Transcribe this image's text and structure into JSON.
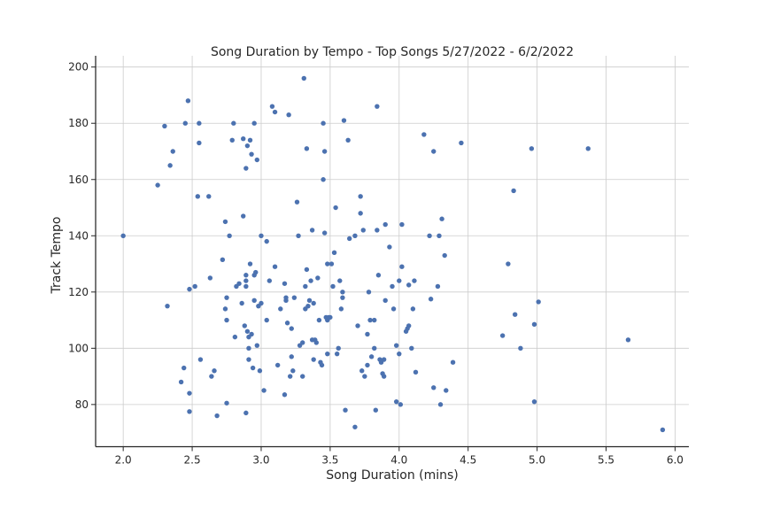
{
  "chart_data": {
    "type": "scatter",
    "title": "Song Duration by Tempo - Top Songs 5/27/2022 - 6/2/2022",
    "xlabel": "Song Duration (mins)",
    "ylabel": "Track Tempo",
    "xlim": [
      1.8,
      6.1
    ],
    "ylim": [
      65,
      204
    ],
    "xticks": [
      "2.0",
      "2.5",
      "3.0",
      "3.5",
      "4.0",
      "4.5",
      "5.0",
      "5.5",
      "6.0"
    ],
    "yticks": [
      "80",
      "100",
      "120",
      "140",
      "160",
      "180",
      "200"
    ],
    "grid": true,
    "color": "#4c72b0",
    "points": [
      [
        2.0,
        140
      ],
      [
        2.25,
        158
      ],
      [
        2.3,
        179
      ],
      [
        2.32,
        115
      ],
      [
        2.34,
        165
      ],
      [
        2.36,
        170
      ],
      [
        2.42,
        88
      ],
      [
        2.44,
        93
      ],
      [
        2.45,
        180
      ],
      [
        2.47,
        188
      ],
      [
        2.48,
        121
      ],
      [
        2.48,
        84
      ],
      [
        2.48,
        77.5
      ],
      [
        2.52,
        122
      ],
      [
        2.54,
        154
      ],
      [
        2.55,
        180
      ],
      [
        2.55,
        173
      ],
      [
        2.56,
        96
      ],
      [
        2.62,
        154
      ],
      [
        2.63,
        125
      ],
      [
        2.64,
        90
      ],
      [
        2.66,
        92
      ],
      [
        2.68,
        76
      ],
      [
        2.72,
        131.5
      ],
      [
        2.74,
        145
      ],
      [
        2.74,
        114
      ],
      [
        2.75,
        118
      ],
      [
        2.75,
        110
      ],
      [
        2.75,
        80.5
      ],
      [
        2.77,
        140
      ],
      [
        2.79,
        174
      ],
      [
        2.8,
        180
      ],
      [
        2.81,
        104
      ],
      [
        2.82,
        122
      ],
      [
        2.84,
        123
      ],
      [
        2.86,
        116
      ],
      [
        2.87,
        147
      ],
      [
        2.87,
        174.5
      ],
      [
        2.88,
        108
      ],
      [
        2.89,
        126
      ],
      [
        2.89,
        124
      ],
      [
        2.89,
        122
      ],
      [
        2.89,
        164
      ],
      [
        2.89,
        77
      ],
      [
        2.9,
        172
      ],
      [
        2.9,
        106
      ],
      [
        2.91,
        104
      ],
      [
        2.91,
        96
      ],
      [
        2.91,
        100
      ],
      [
        2.92,
        130
      ],
      [
        2.92,
        174
      ],
      [
        2.93,
        105
      ],
      [
        2.93,
        169
      ],
      [
        2.94,
        93
      ],
      [
        2.95,
        180
      ],
      [
        2.95,
        126
      ],
      [
        2.95,
        117
      ],
      [
        2.96,
        127
      ],
      [
        2.97,
        101
      ],
      [
        2.97,
        167
      ],
      [
        2.98,
        115
      ],
      [
        2.99,
        92
      ],
      [
        3.0,
        140
      ],
      [
        3.0,
        116
      ],
      [
        3.02,
        85
      ],
      [
        3.04,
        138
      ],
      [
        3.04,
        110
      ],
      [
        3.06,
        124
      ],
      [
        3.08,
        186
      ],
      [
        3.1,
        184
      ],
      [
        3.1,
        129
      ],
      [
        3.12,
        94
      ],
      [
        3.14,
        114
      ],
      [
        3.17,
        123
      ],
      [
        3.17,
        83.5
      ],
      [
        3.18,
        118
      ],
      [
        3.18,
        117
      ],
      [
        3.19,
        109
      ],
      [
        3.2,
        183
      ],
      [
        3.21,
        90
      ],
      [
        3.22,
        107
      ],
      [
        3.22,
        97
      ],
      [
        3.23,
        92
      ],
      [
        3.24,
        118
      ],
      [
        3.26,
        152
      ],
      [
        3.27,
        140
      ],
      [
        3.28,
        101
      ],
      [
        3.3,
        102
      ],
      [
        3.3,
        90
      ],
      [
        3.31,
        196
      ],
      [
        3.32,
        122
      ],
      [
        3.32,
        114
      ],
      [
        3.33,
        171
      ],
      [
        3.33,
        128
      ],
      [
        3.34,
        115
      ],
      [
        3.35,
        117
      ],
      [
        3.36,
        124
      ],
      [
        3.37,
        142
      ],
      [
        3.37,
        103
      ],
      [
        3.38,
        96
      ],
      [
        3.38,
        116
      ],
      [
        3.39,
        103
      ],
      [
        3.4,
        102
      ],
      [
        3.41,
        125
      ],
      [
        3.42,
        110
      ],
      [
        3.43,
        95
      ],
      [
        3.44,
        94
      ],
      [
        3.45,
        180
      ],
      [
        3.45,
        160
      ],
      [
        3.46,
        170
      ],
      [
        3.46,
        141
      ],
      [
        3.47,
        111
      ],
      [
        3.48,
        110
      ],
      [
        3.48,
        130
      ],
      [
        3.48,
        98
      ],
      [
        3.49,
        111
      ],
      [
        3.5,
        111
      ],
      [
        3.51,
        130
      ],
      [
        3.52,
        122
      ],
      [
        3.53,
        134
      ],
      [
        3.54,
        150
      ],
      [
        3.55,
        98
      ],
      [
        3.56,
        100
      ],
      [
        3.57,
        124
      ],
      [
        3.58,
        114
      ],
      [
        3.59,
        120
      ],
      [
        3.59,
        118
      ],
      [
        3.6,
        181
      ],
      [
        3.61,
        78
      ],
      [
        3.63,
        174
      ],
      [
        3.64,
        139
      ],
      [
        3.68,
        140
      ],
      [
        3.68,
        72
      ],
      [
        3.7,
        108
      ],
      [
        3.72,
        154
      ],
      [
        3.72,
        148
      ],
      [
        3.73,
        92
      ],
      [
        3.74,
        142
      ],
      [
        3.75,
        90
      ],
      [
        3.77,
        94
      ],
      [
        3.77,
        105
      ],
      [
        3.78,
        120
      ],
      [
        3.79,
        110
      ],
      [
        3.8,
        97
      ],
      [
        3.82,
        110
      ],
      [
        3.82,
        100
      ],
      [
        3.83,
        78
      ],
      [
        3.84,
        186
      ],
      [
        3.84,
        142
      ],
      [
        3.85,
        126
      ],
      [
        3.86,
        96
      ],
      [
        3.87,
        95
      ],
      [
        3.88,
        91
      ],
      [
        3.89,
        96
      ],
      [
        3.89,
        90
      ],
      [
        3.9,
        144
      ],
      [
        3.9,
        117
      ],
      [
        3.93,
        136
      ],
      [
        3.95,
        122
      ],
      [
        3.96,
        114
      ],
      [
        3.98,
        81
      ],
      [
        3.98,
        101
      ],
      [
        4.0,
        124
      ],
      [
        4.0,
        98
      ],
      [
        4.01,
        80
      ],
      [
        4.02,
        144
      ],
      [
        4.02,
        129
      ],
      [
        4.05,
        106
      ],
      [
        4.06,
        107
      ],
      [
        4.07,
        108
      ],
      [
        4.07,
        122.5
      ],
      [
        4.09,
        100
      ],
      [
        4.1,
        114
      ],
      [
        4.11,
        124
      ],
      [
        4.12,
        91.5
      ],
      [
        4.18,
        176
      ],
      [
        4.22,
        140
      ],
      [
        4.23,
        117.5
      ],
      [
        4.25,
        170
      ],
      [
        4.25,
        86
      ],
      [
        4.28,
        122
      ],
      [
        4.29,
        140
      ],
      [
        4.3,
        80
      ],
      [
        4.31,
        146
      ],
      [
        4.33,
        133
      ],
      [
        4.34,
        85
      ],
      [
        4.39,
        95
      ],
      [
        4.45,
        173
      ],
      [
        4.75,
        104.5
      ],
      [
        4.79,
        130
      ],
      [
        4.83,
        156
      ],
      [
        4.84,
        112
      ],
      [
        4.88,
        100
      ],
      [
        4.96,
        171
      ],
      [
        4.98,
        81
      ],
      [
        4.98,
        108.5
      ],
      [
        5.01,
        116.5
      ],
      [
        5.37,
        171
      ],
      [
        5.66,
        103
      ],
      [
        5.91,
        71
      ]
    ]
  }
}
